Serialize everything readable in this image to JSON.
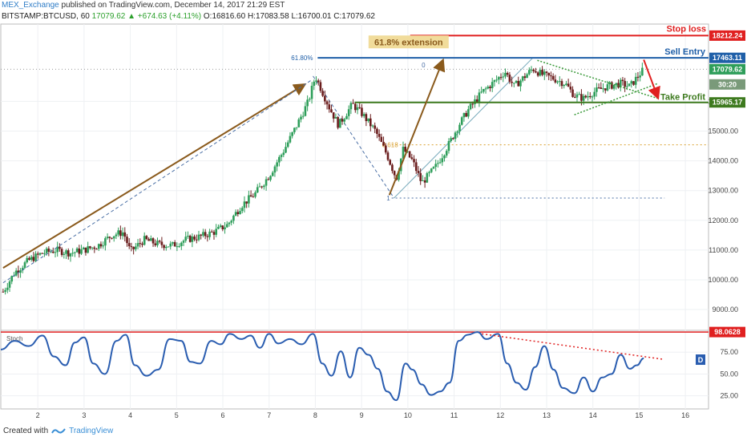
{
  "header": {
    "user": "MEX_Exchange",
    "published": " published on TradingView.com, December 14, 2017 21:29 EST"
  },
  "symbol_line": {
    "symbol": "BITSTAMP:BTCUSD, 60",
    "last": "17079.62",
    "change": "▲ +674.63 (+4.11%)",
    "ohlc": "O:16816.60 H:17083.58 L:16700.01 C:17079.62"
  },
  "footer": {
    "created": "Created with",
    "brand": "TradingView"
  },
  "colors": {
    "red": "#e02020",
    "blue": "#1f5fa8",
    "green": "#3d7a1e",
    "brown": "#8a5a1c",
    "stoch": "#2a5db0",
    "up": "#2e9e5a",
    "down": "#6b1d1d"
  },
  "chart_data": [
    {
      "type": "candlestick",
      "title": "BITSTAMP:BTCUSD, 60",
      "x_ticks": [
        "2",
        "3",
        "4",
        "5",
        "6",
        "7",
        "8",
        "9",
        "10",
        "11",
        "12",
        "13",
        "14",
        "15",
        "16"
      ],
      "y_ticks": [
        9000,
        10000,
        11000,
        12000,
        13000,
        14000,
        15000,
        16000
      ],
      "ylim": [
        8300,
        18600
      ],
      "xlim": [
        1.2,
        16.5
      ],
      "price_labels": [
        {
          "name": "Stop loss",
          "value": "18212.24",
          "price": 18212.24,
          "color": "#e02020"
        },
        {
          "name": "Sell Entry",
          "value": "17463.11",
          "price": 17463.11,
          "color": "#1f5fa8"
        },
        {
          "name": "last",
          "value": "17079.62",
          "price": 17079.62,
          "color": "#2e9e5a"
        },
        {
          "name": "countdown",
          "value": "30:20",
          "price": 16570,
          "color": "#7a9a7a"
        },
        {
          "name": "Take Profit",
          "value": "15965.17",
          "price": 15965.17,
          "color": "#3d7a1e"
        }
      ],
      "annotations": {
        "stop_loss": "Stop loss",
        "sell_entry": "Sell Entry",
        "take_profit": "Take Profit",
        "extension": "61.8% extension",
        "fib_618": "61.80%",
        "fib_0": "0",
        "fib_0618": "0.618",
        "fib_1": "1"
      },
      "close_path": [
        [
          1.25,
          9600
        ],
        [
          1.5,
          10250
        ],
        [
          1.8,
          10650
        ],
        [
          2.1,
          10900
        ],
        [
          2.4,
          11000
        ],
        [
          2.7,
          10900
        ],
        [
          3.0,
          11000
        ],
        [
          3.3,
          11150
        ],
        [
          3.6,
          11500
        ],
        [
          3.85,
          11600
        ],
        [
          4.0,
          10950
        ],
        [
          4.3,
          11350
        ],
        [
          4.6,
          11200
        ],
        [
          4.9,
          11150
        ],
        [
          5.2,
          11350
        ],
        [
          5.5,
          11450
        ],
        [
          5.8,
          11600
        ],
        [
          6.1,
          11850
        ],
        [
          6.4,
          12500
        ],
        [
          6.7,
          12900
        ],
        [
          7.0,
          13500
        ],
        [
          7.3,
          14300
        ],
        [
          7.6,
          15200
        ],
        [
          7.85,
          16000
        ],
        [
          8.0,
          16850
        ],
        [
          8.1,
          16500
        ],
        [
          8.3,
          15800
        ],
        [
          8.5,
          15200
        ],
        [
          8.8,
          15900
        ],
        [
          9.0,
          15600
        ],
        [
          9.3,
          15000
        ],
        [
          9.55,
          14200
        ],
        [
          9.75,
          13400
        ],
        [
          9.9,
          14400
        ],
        [
          10.1,
          14000
        ],
        [
          10.3,
          13250
        ],
        [
          10.6,
          13800
        ],
        [
          10.9,
          14600
        ],
        [
          11.1,
          15200
        ],
        [
          11.3,
          15700
        ],
        [
          11.6,
          16300
        ],
        [
          11.9,
          16700
        ],
        [
          12.1,
          17000
        ],
        [
          12.3,
          16500
        ],
        [
          12.5,
          16800
        ],
        [
          12.7,
          17100
        ],
        [
          12.9,
          16900
        ],
        [
          13.1,
          16800
        ],
        [
          13.4,
          16600
        ],
        [
          13.6,
          16200
        ],
        [
          13.8,
          16100
        ],
        [
          14.0,
          16300
        ],
        [
          14.3,
          16500
        ],
        [
          14.6,
          16600
        ],
        [
          14.8,
          16500
        ],
        [
          14.95,
          16800
        ],
        [
          15.1,
          17079.62
        ]
      ]
    },
    {
      "type": "line",
      "title": "Stoch",
      "y_ticks": [
        25.0,
        50.0,
        75.0
      ],
      "ylim": [
        10,
        100
      ],
      "level_label": "98.0628",
      "level": 98.0628,
      "series_marker": "D",
      "points": [
        [
          1.2,
          78
        ],
        [
          1.5,
          88
        ],
        [
          1.8,
          82
        ],
        [
          2.1,
          94
        ],
        [
          2.35,
          70
        ],
        [
          2.6,
          60
        ],
        [
          2.8,
          86
        ],
        [
          3.0,
          92
        ],
        [
          3.2,
          62
        ],
        [
          3.45,
          50
        ],
        [
          3.7,
          88
        ],
        [
          3.9,
          95
        ],
        [
          4.1,
          60
        ],
        [
          4.35,
          48
        ],
        [
          4.6,
          55
        ],
        [
          4.85,
          90
        ],
        [
          5.1,
          88
        ],
        [
          5.3,
          64
        ],
        [
          5.5,
          62
        ],
        [
          5.75,
          88
        ],
        [
          5.95,
          84
        ],
        [
          6.15,
          96
        ],
        [
          6.4,
          90
        ],
        [
          6.6,
          94
        ],
        [
          6.8,
          80
        ],
        [
          7.0,
          96
        ],
        [
          7.2,
          85
        ],
        [
          7.45,
          90
        ],
        [
          7.7,
          84
        ],
        [
          7.95,
          96
        ],
        [
          8.15,
          62
        ],
        [
          8.35,
          48
        ],
        [
          8.55,
          76
        ],
        [
          8.75,
          46
        ],
        [
          8.95,
          80
        ],
        [
          9.15,
          72
        ],
        [
          9.35,
          56
        ],
        [
          9.55,
          30
        ],
        [
          9.75,
          20
        ],
        [
          9.95,
          62
        ],
        [
          10.1,
          55
        ],
        [
          10.3,
          38
        ],
        [
          10.5,
          26
        ],
        [
          10.7,
          30
        ],
        [
          10.9,
          40
        ],
        [
          11.1,
          88
        ],
        [
          11.3,
          95
        ],
        [
          11.5,
          98
        ],
        [
          11.7,
          90
        ],
        [
          11.95,
          96
        ],
        [
          12.15,
          62
        ],
        [
          12.35,
          40
        ],
        [
          12.55,
          32
        ],
        [
          12.75,
          58
        ],
        [
          12.95,
          82
        ],
        [
          13.15,
          55
        ],
        [
          13.35,
          34
        ],
        [
          13.6,
          28
        ],
        [
          13.8,
          46
        ],
        [
          14.0,
          30
        ],
        [
          14.2,
          46
        ],
        [
          14.4,
          50
        ],
        [
          14.6,
          72
        ],
        [
          14.8,
          56
        ],
        [
          14.95,
          60
        ],
        [
          15.1,
          68
        ]
      ]
    }
  ]
}
